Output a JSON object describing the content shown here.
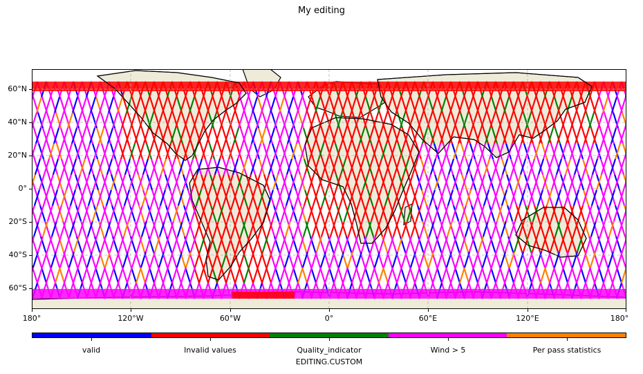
{
  "title": "My editing",
  "x_ticks": [
    "180°",
    "120°W",
    "60°W",
    "0°",
    "60°E",
    "120°E",
    "180°"
  ],
  "y_ticks": [
    "60°N",
    "40°N",
    "20°N",
    "0°",
    "20°S",
    "40°S",
    "60°S"
  ],
  "colorbar": {
    "title": "EDITING.CUSTOM",
    "categories": [
      "valid",
      "Invalid values",
      "Quality_indicator",
      "Wind > 5",
      "Per pass statistics"
    ],
    "colors": [
      "#0000ff",
      "#ff0000",
      "#008000",
      "#ff00ff",
      "#ff8000"
    ]
  },
  "colors": {
    "ocean": "#ffffff",
    "land": "#efebd9",
    "coast": "#000000",
    "gridline": "#b0b0b0"
  }
}
